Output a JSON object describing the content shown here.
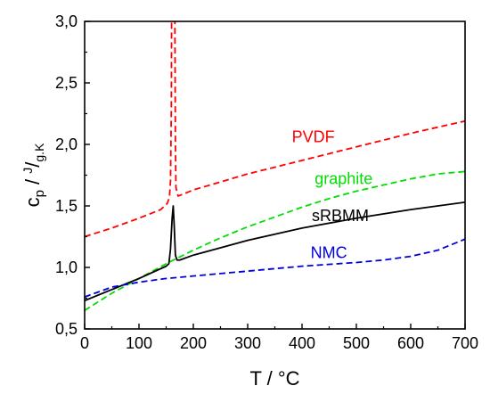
{
  "chart_data": {
    "type": "line",
    "title": "",
    "xlabel": "T / °C",
    "ylabel": {
      "main": "c",
      "sub": "p",
      "sep": " / ",
      "unit_sup": "J",
      "unit_slash": "/",
      "unit_sub": "g.K"
    },
    "xlim": [
      0,
      700
    ],
    "ylim": [
      0.5,
      3.0
    ],
    "x_ticks": [
      0,
      100,
      200,
      300,
      400,
      500,
      600,
      700
    ],
    "y_ticks": [
      0.5,
      1.0,
      1.5,
      2.0,
      2.5,
      3.0
    ],
    "x_tick_labels": [
      "0",
      "100",
      "200",
      "300",
      "400",
      "500",
      "600",
      "700"
    ],
    "y_tick_labels": [
      "0,5",
      "1,0",
      "1,5",
      "2,0",
      "2,5",
      "3,0"
    ],
    "grid": false,
    "series": [
      {
        "name": "PVDF",
        "color": "#ff0000",
        "style": "dashed",
        "x": [
          0,
          50,
          100,
          140,
          152,
          156,
          158,
          159.5,
          160,
          166,
          167,
          168,
          172,
          178,
          200,
          300,
          400,
          500,
          600,
          700
        ],
        "y": [
          1.25,
          1.32,
          1.4,
          1.47,
          1.52,
          1.57,
          1.7,
          2.3,
          3.05,
          3.05,
          2.0,
          1.65,
          1.58,
          1.59,
          1.63,
          1.76,
          1.87,
          1.98,
          2.09,
          2.19
        ]
      },
      {
        "name": "graphite",
        "color": "#00dd00",
        "style": "dashed",
        "x": [
          0,
          25,
          50,
          100,
          150,
          200,
          250,
          300,
          350,
          400,
          450,
          500,
          550,
          600,
          650,
          700
        ],
        "y": [
          0.65,
          0.72,
          0.79,
          0.91,
          1.03,
          1.14,
          1.24,
          1.33,
          1.41,
          1.49,
          1.56,
          1.62,
          1.67,
          1.72,
          1.76,
          1.78
        ]
      },
      {
        "name": "sRBMM",
        "color": "#000000",
        "style": "solid",
        "x": [
          0,
          50,
          100,
          150,
          155,
          158,
          161,
          163,
          165,
          167,
          170,
          175,
          200,
          300,
          400,
          500,
          600,
          700
        ],
        "y": [
          0.73,
          0.82,
          0.91,
          1.01,
          1.03,
          1.15,
          1.4,
          1.5,
          1.32,
          1.1,
          1.06,
          1.06,
          1.1,
          1.22,
          1.32,
          1.4,
          1.47,
          1.53
        ]
      },
      {
        "name": "NMC",
        "color": "#0000dd",
        "style": "dashed",
        "x": [
          0,
          25,
          50,
          100,
          150,
          200,
          300,
          400,
          500,
          550,
          600,
          650,
          700
        ],
        "y": [
          0.76,
          0.8,
          0.84,
          0.88,
          0.91,
          0.93,
          0.97,
          1.01,
          1.04,
          1.06,
          1.09,
          1.14,
          1.23
        ]
      }
    ],
    "annotations": [
      {
        "text": "PVDF",
        "color": "#ff0000",
        "x": 460,
        "y": 2.06
      },
      {
        "text": "graphite",
        "color": "#00dd00",
        "x": 530,
        "y": 1.72
      },
      {
        "text": "sRBMM",
        "color": "#000000",
        "x": 523,
        "y": 1.42
      },
      {
        "text": "NMC",
        "color": "#0000dd",
        "x": 483,
        "y": 1.12
      }
    ]
  }
}
